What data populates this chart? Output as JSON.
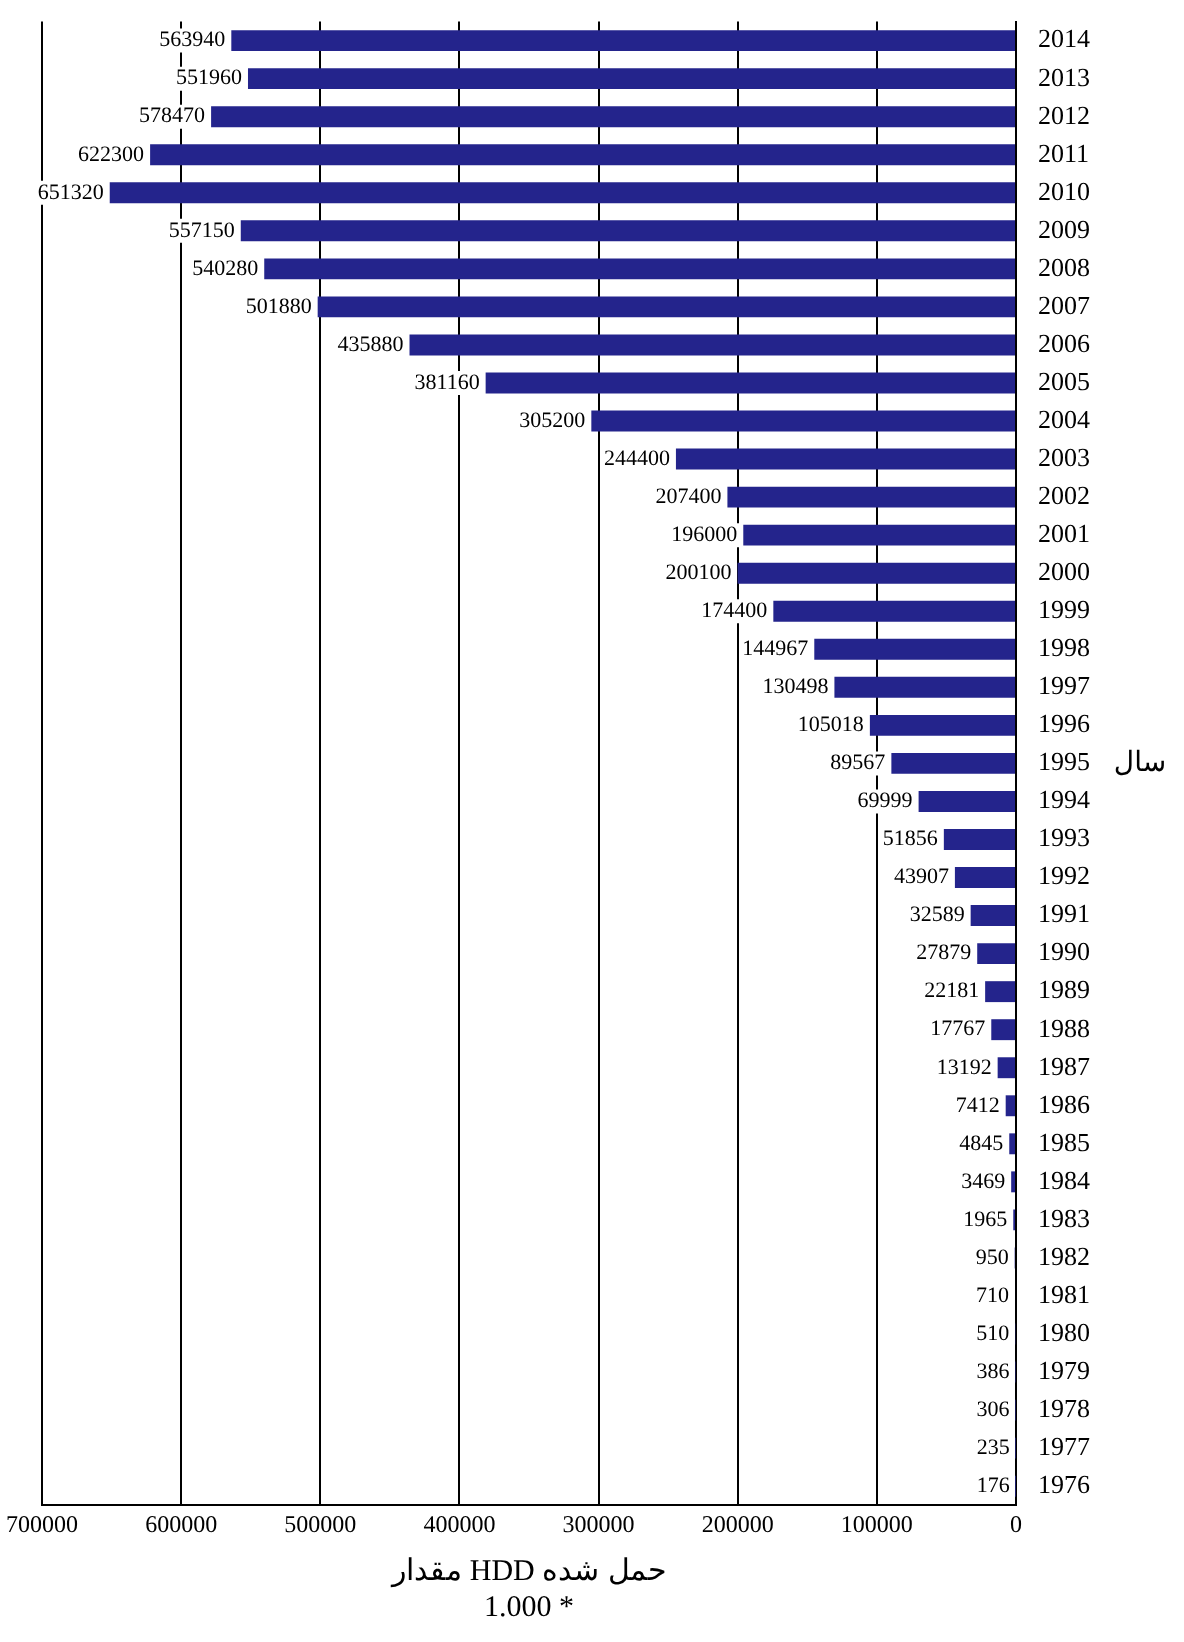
{
  "chart_data": {
    "type": "bar",
    "orientation": "horizontal",
    "xlabel": "مقدار HDD حمل شده\n1.000 *",
    "ylabel": "سال",
    "categories": [
      "2014",
      "2013",
      "2012",
      "2011",
      "2010",
      "2009",
      "2008",
      "2007",
      "2006",
      "2005",
      "2004",
      "2003",
      "2002",
      "2001",
      "2000",
      "1999",
      "1998",
      "1997",
      "1996",
      "1995",
      "1994",
      "1993",
      "1992",
      "1991",
      "1990",
      "1989",
      "1988",
      "1987",
      "1986",
      "1985",
      "1984",
      "1983",
      "1982",
      "1981",
      "1980",
      "1979",
      "1978",
      "1977",
      "1976"
    ],
    "values": [
      563940,
      551960,
      578470,
      622300,
      651320,
      557150,
      540280,
      501880,
      435880,
      381160,
      305200,
      244400,
      207400,
      196000,
      200100,
      174400,
      144967,
      130498,
      105018,
      89567,
      69999,
      51856,
      43907,
      32589,
      27879,
      22181,
      17767,
      13192,
      7412,
      4845,
      3469,
      1965,
      950,
      710,
      510,
      386,
      306,
      235,
      176
    ],
    "color": "#24248c",
    "xlim": [
      700000,
      0
    ],
    "xticks": [
      700000,
      600000,
      500000,
      400000,
      300000,
      200000,
      100000,
      0
    ],
    "grid": "x",
    "legend": false,
    "data_labels": true
  }
}
